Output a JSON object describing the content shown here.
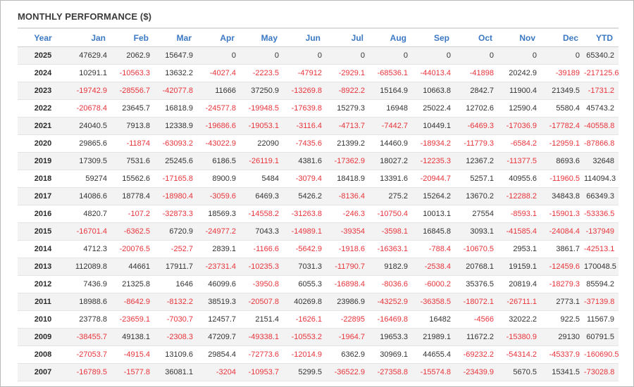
{
  "title": "MONTHLY PERFORMANCE ($)",
  "colors": {
    "header": "#3b78c4",
    "negative": "#e8343b",
    "positive": "#333333",
    "stripe": "#f3f3f3"
  },
  "columns": [
    "Year",
    "Jan",
    "Feb",
    "Mar",
    "Apr",
    "May",
    "Jun",
    "Jul",
    "Aug",
    "Sep",
    "Oct",
    "Nov",
    "Dec",
    "YTD"
  ],
  "rows": [
    [
      "2025",
      "47629.4",
      "2062.9",
      "15647.9",
      "0",
      "0",
      "0",
      "0",
      "0",
      "0",
      "0",
      "0",
      "0",
      "65340.2"
    ],
    [
      "2024",
      "10291.1",
      "-10563.3",
      "13632.2",
      "-4027.4",
      "-2223.5",
      "-47912",
      "-2929.1",
      "-68536.1",
      "-44013.4",
      "-41898",
      "20242.9",
      "-39189",
      "-217125.6"
    ],
    [
      "2023",
      "-19742.9",
      "-28556.7",
      "-42077.8",
      "11666",
      "37250.9",
      "-13269.8",
      "-8922.2",
      "15164.9",
      "10663.8",
      "2842.7",
      "11900.4",
      "21349.5",
      "-1731.2"
    ],
    [
      "2022",
      "-20678.4",
      "23645.7",
      "16818.9",
      "-24577.8",
      "-19948.5",
      "-17639.8",
      "15279.3",
      "16948",
      "25022.4",
      "12702.6",
      "12590.4",
      "5580.4",
      "45743.2"
    ],
    [
      "2021",
      "24040.5",
      "7913.8",
      "12338.9",
      "-19686.6",
      "-19053.1",
      "-3116.4",
      "-4713.7",
      "-7442.7",
      "10449.1",
      "-6469.3",
      "-17036.9",
      "-17782.4",
      "-40558.8"
    ],
    [
      "2020",
      "29865.6",
      "-11874",
      "-63093.2",
      "-43022.9",
      "22090",
      "-7435.6",
      "21399.2",
      "14460.9",
      "-18934.2",
      "-11779.3",
      "-6584.2",
      "-12959.1",
      "-87866.8"
    ],
    [
      "2019",
      "17309.5",
      "7531.6",
      "25245.6",
      "6186.5",
      "-26119.1",
      "4381.6",
      "-17362.9",
      "18027.2",
      "-12235.3",
      "12367.2",
      "-11377.5",
      "8693.6",
      "32648"
    ],
    [
      "2018",
      "59274",
      "15562.6",
      "-17165.8",
      "8900.9",
      "5484",
      "-3079.4",
      "18418.9",
      "13391.6",
      "-20944.7",
      "5257.1",
      "40955.6",
      "-11960.5",
      "114094.3"
    ],
    [
      "2017",
      "14086.6",
      "18778.4",
      "-18980.4",
      "-3059.6",
      "6469.3",
      "5426.2",
      "-8136.4",
      "275.2",
      "15264.2",
      "13670.2",
      "-12288.2",
      "34843.8",
      "66349.3"
    ],
    [
      "2016",
      "4820.7",
      "-107.2",
      "-32873.3",
      "18569.3",
      "-14558.2",
      "-31263.8",
      "-246.3",
      "-10750.4",
      "10013.1",
      "27554",
      "-8593.1",
      "-15901.3",
      "-53336.5"
    ],
    [
      "2015",
      "-16701.4",
      "-6362.5",
      "6720.9",
      "-24977.2",
      "7043.3",
      "-14989.1",
      "-39354",
      "-3598.1",
      "16845.8",
      "3093.1",
      "-41585.4",
      "-24084.4",
      "-137949"
    ],
    [
      "2014",
      "4712.3",
      "-20076.5",
      "-252.7",
      "2839.1",
      "-1166.6",
      "-5642.9",
      "-1918.6",
      "-16363.1",
      "-788.4",
      "-10670.5",
      "2953.1",
      "3861.7",
      "-42513.1"
    ],
    [
      "2013",
      "112089.8",
      "44661",
      "17911.7",
      "-23731.4",
      "-10235.3",
      "7031.3",
      "-11790.7",
      "9182.9",
      "-2538.4",
      "20768.1",
      "19159.1",
      "-12459.6",
      "170048.5"
    ],
    [
      "2012",
      "7436.9",
      "21325.8",
      "1646",
      "46099.6",
      "-3950.8",
      "6055.3",
      "-16898.4",
      "-8036.6",
      "-6000.2",
      "35376.5",
      "20819.4",
      "-18279.3",
      "85594.2"
    ],
    [
      "2011",
      "18988.6",
      "-8642.9",
      "-8132.2",
      "38519.3",
      "-20507.8",
      "40269.8",
      "23986.9",
      "-43252.9",
      "-36358.5",
      "-18072.1",
      "-26711.1",
      "2773.1",
      "-37139.8"
    ],
    [
      "2010",
      "23778.8",
      "-23659.1",
      "-7030.7",
      "12457.7",
      "2151.4",
      "-1626.1",
      "-22895",
      "-16469.8",
      "16482",
      "-4566",
      "32022.2",
      "922.5",
      "11567.9"
    ],
    [
      "2009",
      "-38455.7",
      "49138.1",
      "-2308.3",
      "47209.7",
      "-49338.1",
      "-10553.2",
      "-1964.7",
      "19653.3",
      "21989.1",
      "11672.2",
      "-15380.9",
      "29130",
      "60791.5"
    ],
    [
      "2008",
      "-27053.7",
      "-4915.4",
      "13109.6",
      "29854.4",
      "-72773.6",
      "-12014.9",
      "6362.9",
      "30969.1",
      "44655.4",
      "-69232.2",
      "-54314.2",
      "-45337.9",
      "-160690.5"
    ],
    [
      "2007",
      "-16789.5",
      "-1577.8",
      "36081.1",
      "-3204",
      "-10953.7",
      "5299.5",
      "-36522.9",
      "-27358.8",
      "-15574.8",
      "-23439.9",
      "5670.5",
      "15341.5",
      "-73028.8"
    ]
  ]
}
